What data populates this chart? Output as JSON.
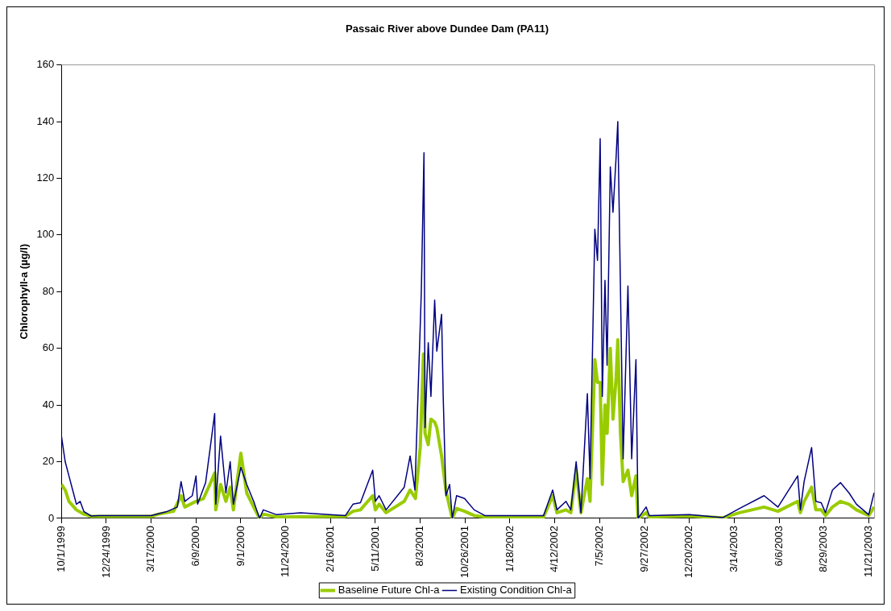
{
  "chart_data": {
    "type": "line",
    "title": "Passaic River above Dundee Dam (PA11)",
    "ylabel": "Chlorophyll-a (µg/l)",
    "xlim": [
      "1999-10-01",
      "2003-12-02"
    ],
    "xticks": [
      {
        "value": "1999-10-01",
        "label": "10/1/1999"
      },
      {
        "value": "1999-12-24",
        "label": "12/24/1999"
      },
      {
        "value": "2000-03-17",
        "label": "3/17/2000"
      },
      {
        "value": "2000-06-09",
        "label": "6/9/2000"
      },
      {
        "value": "2000-09-01",
        "label": "9/1/2000"
      },
      {
        "value": "2000-11-24",
        "label": "11/24/2000"
      },
      {
        "value": "2001-02-16",
        "label": "2/16/2001"
      },
      {
        "value": "2001-05-11",
        "label": "5/11/2001"
      },
      {
        "value": "2001-08-03",
        "label": "8/3/2001"
      },
      {
        "value": "2001-10-26",
        "label": "10/26/2001"
      },
      {
        "value": "2002-01-18",
        "label": "1/18/2002"
      },
      {
        "value": "2002-04-12",
        "label": "4/12/2002"
      },
      {
        "value": "2002-07-05",
        "label": "7/5/2002"
      },
      {
        "value": "2002-09-27",
        "label": "9/27/2002"
      },
      {
        "value": "2002-12-20",
        "label": "12/20/2002"
      },
      {
        "value": "2003-03-14",
        "label": "3/14/2003"
      },
      {
        "value": "2003-06-06",
        "label": "6/6/2003"
      },
      {
        "value": "2003-08-29",
        "label": "8/29/2003"
      },
      {
        "value": "2003-11-21",
        "label": "11/21/2003"
      }
    ],
    "ylim": [
      0,
      160
    ],
    "yticks": [
      0,
      20,
      40,
      60,
      80,
      100,
      120,
      140,
      160
    ],
    "grid": false,
    "legend": "bottom",
    "marker": "none",
    "line_style": "solid",
    "series": [
      {
        "name": "Baseline Future Chl-a",
        "color": "#99cc00",
        "x": [
          "1999-10-01",
          "1999-10-08",
          "1999-10-15",
          "1999-10-29",
          "1999-11-12",
          "1999-11-26",
          "2000-03-17",
          "2000-03-31",
          "2000-04-28",
          "2000-05-12",
          "2000-05-19",
          "2000-06-09",
          "2000-06-23",
          "2000-07-05",
          "2000-07-14",
          "2000-07-16",
          "2000-07-25",
          "2000-08-04",
          "2000-08-12",
          "2000-08-18",
          "2000-09-01",
          "2000-09-12",
          "2000-09-25",
          "2000-10-06",
          "2000-10-13",
          "2000-11-07",
          "2001-03-16",
          "2001-03-30",
          "2001-04-13",
          "2001-05-06",
          "2001-05-11",
          "2001-05-18",
          "2001-05-31",
          "2001-07-04",
          "2001-07-15",
          "2001-07-25",
          "2001-08-03",
          "2001-08-09",
          "2001-08-12",
          "2001-08-18",
          "2001-08-23",
          "2001-08-30",
          "2001-09-03",
          "2001-09-12",
          "2001-09-20",
          "2001-09-27",
          "2001-10-02",
          "2001-10-10",
          "2001-10-25",
          "2001-11-12",
          "2001-12-02",
          "2002-03-22",
          "2002-04-08",
          "2002-04-16",
          "2002-05-03",
          "2002-05-12",
          "2002-05-22",
          "2002-05-31",
          "2002-06-12",
          "2002-06-17",
          "2002-06-26",
          "2002-07-01",
          "2002-07-06",
          "2002-07-10",
          "2002-07-15",
          "2002-07-19",
          "2002-07-25",
          "2002-07-30",
          "2002-08-05",
          "2002-08-08",
          "2002-08-13",
          "2002-08-18",
          "2002-08-27",
          "2002-09-03",
          "2002-09-11",
          "2002-09-15",
          "2002-09-30",
          "2002-10-06",
          "2002-12-20",
          "2003-02-21",
          "2003-03-24",
          "2003-05-09",
          "2003-06-04",
          "2003-07-11",
          "2003-07-16",
          "2003-07-23",
          "2003-08-06",
          "2003-08-14",
          "2003-08-24",
          "2003-09-01",
          "2003-09-14",
          "2003-09-29",
          "2003-10-15",
          "2003-10-29",
          "2003-11-21",
          "2003-12-01"
        ],
        "values": [
          12,
          10,
          6,
          3,
          1.5,
          0.7,
          0.7,
          1.5,
          2.5,
          8,
          4,
          6,
          7,
          12,
          16,
          3,
          12,
          6,
          11,
          3,
          23,
          9,
          4,
          0,
          1.5,
          0.5,
          0.7,
          2.5,
          3,
          8,
          3,
          5,
          2,
          6,
          10,
          7,
          25,
          58,
          30,
          26,
          35,
          34,
          32,
          22,
          10,
          4,
          0,
          3.5,
          2.5,
          1,
          0.5,
          0.5,
          8,
          2,
          3,
          2,
          17,
          2,
          14,
          6,
          56,
          48,
          48,
          12,
          40,
          30,
          60,
          35,
          50,
          63,
          30,
          13,
          17,
          8,
          15,
          0,
          2,
          0.5,
          0.8,
          0.2,
          2,
          4,
          2.5,
          6,
          2,
          6,
          11,
          3,
          3,
          1,
          4,
          6,
          5,
          3,
          1,
          4
        ]
      },
      {
        "name": "Existing Condition Chl-a",
        "color": "#000080",
        "x": [
          "1999-10-01",
          "1999-10-08",
          "1999-10-15",
          "1999-10-22",
          "1999-10-29",
          "1999-11-05",
          "1999-11-12",
          "1999-11-26",
          "1999-12-10",
          "2000-03-17",
          "2000-04-14",
          "2000-05-05",
          "2000-05-12",
          "2000-05-19",
          "2000-06-02",
          "2000-06-09",
          "2000-06-12",
          "2000-06-27",
          "2000-07-05",
          "2000-07-14",
          "2000-07-16",
          "2000-07-25",
          "2000-08-04",
          "2000-08-12",
          "2000-08-18",
          "2000-09-01",
          "2000-09-12",
          "2000-09-25",
          "2000-10-06",
          "2000-10-13",
          "2000-11-07",
          "2000-12-22",
          "2001-03-16",
          "2001-03-30",
          "2001-04-13",
          "2001-05-06",
          "2001-05-11",
          "2001-05-18",
          "2001-05-31",
          "2001-07-04",
          "2001-07-15",
          "2001-07-24",
          "2001-08-03",
          "2001-08-05",
          "2001-08-10",
          "2001-08-12",
          "2001-08-18",
          "2001-08-23",
          "2001-08-30",
          "2001-09-03",
          "2001-09-12",
          "2001-09-15",
          "2001-09-20",
          "2001-09-27",
          "2001-10-02",
          "2001-10-10",
          "2001-10-25",
          "2001-11-12",
          "2001-12-02",
          "2002-03-22",
          "2002-04-08",
          "2002-04-16",
          "2002-05-03",
          "2002-05-12",
          "2002-05-22",
          "2002-05-31",
          "2002-06-12",
          "2002-06-17",
          "2002-06-26",
          "2002-07-01",
          "2002-07-06",
          "2002-07-10",
          "2002-07-15",
          "2002-07-19",
          "2002-07-25",
          "2002-07-30",
          "2002-08-05",
          "2002-08-08",
          "2002-08-13",
          "2002-08-18",
          "2002-08-27",
          "2002-09-03",
          "2002-09-11",
          "2002-09-15",
          "2002-09-30",
          "2002-10-06",
          "2002-12-20",
          "2003-02-21",
          "2003-03-24",
          "2003-05-09",
          "2003-06-04",
          "2003-07-11",
          "2003-07-16",
          "2003-07-23",
          "2003-08-06",
          "2003-08-14",
          "2003-08-24",
          "2003-09-01",
          "2003-09-14",
          "2003-09-29",
          "2003-10-15",
          "2003-10-29",
          "2003-11-21",
          "2003-12-01"
        ],
        "values": [
          29,
          20,
          15,
          10,
          5,
          6,
          2.4,
          0.8,
          1,
          1,
          2.3,
          4,
          13,
          6,
          8,
          15,
          5,
          12.6,
          24,
          37,
          5,
          29,
          9,
          20,
          5,
          18,
          12,
          6,
          0,
          3,
          1.3,
          2,
          1,
          5,
          5.5,
          17,
          6,
          8,
          3,
          11,
          22,
          10,
          68,
          80,
          129,
          32,
          62,
          43,
          77,
          59,
          72,
          43,
          8,
          12,
          0,
          8,
          7,
          3,
          1,
          1,
          10,
          3,
          6,
          3,
          20,
          2,
          44,
          14,
          102,
          91,
          134,
          43,
          84,
          54,
          124,
          108,
          128,
          140,
          81,
          21,
          82,
          21,
          56,
          0,
          4,
          1,
          1.3,
          0.3,
          3.5,
          8,
          4,
          15,
          3,
          13,
          25,
          6,
          5.5,
          2,
          10,
          12.6,
          9,
          5,
          1.3,
          9
        ]
      }
    ]
  }
}
